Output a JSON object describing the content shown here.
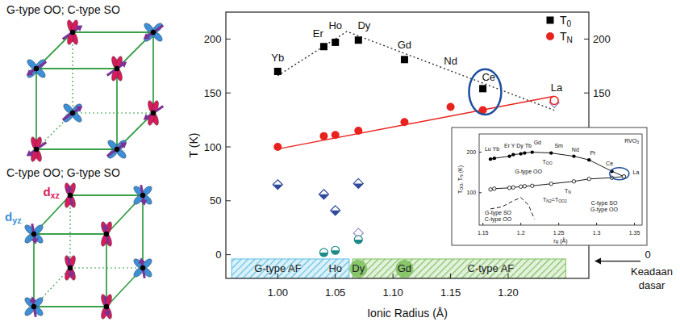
{
  "diagram": {
    "panels": [
      {
        "title": "G-type OO; C-type SO",
        "orbital_order": "G",
        "spin_order": "C"
      },
      {
        "title": "C-type OO; G-type SO",
        "orbital_order": "C",
        "spin_order": "G"
      }
    ],
    "orbitals": [
      {
        "label": [
          "d",
          "xz"
        ],
        "color": "#d81b5a"
      },
      {
        "label": [
          "d",
          "yz"
        ],
        "color": "#3d8fd6"
      }
    ],
    "spin_color": "#7b3294",
    "edge_color": "#3aa04a"
  },
  "chart_data": [
    {
      "type": "scatter",
      "x_label": "Ionic Radius (Å)",
      "y_label": "T (K)",
      "xlim": [
        0.955,
        1.27
      ],
      "xticks": [
        {
          "value": 1.0,
          "label": "1.00"
        },
        1.05,
        {
          "value": 1.1,
          "label": "1.10"
        },
        1.15,
        {
          "value": 1.2,
          "label": "1.20"
        }
      ],
      "ylim": [
        -22,
        225
      ],
      "yticks": [
        0,
        50,
        100,
        150,
        200
      ],
      "y2lim": [
        -22,
        225
      ],
      "y2ticks": [
        150,
        200
      ],
      "grid": false,
      "legend": "top-right",
      "series": [
        {
          "name": [
            "T",
            "0"
          ],
          "color": "#000000",
          "marker": "square",
          "x": [
            1.0,
            1.04,
            1.05,
            1.07,
            1.11,
            1.178
          ],
          "values": [
            170,
            193,
            197,
            199,
            181,
            154
          ]
        },
        {
          "name": [
            "T",
            "N"
          ],
          "color": "#e8231f",
          "marker": "circle",
          "x": [
            1.0,
            1.04,
            1.05,
            1.07,
            1.11,
            1.15,
            1.178
          ],
          "values": [
            100,
            110,
            111,
            115,
            123,
            137,
            134
          ]
        },
        {
          "color": "#2e4a9a",
          "marker": "half-diamond",
          "x": [
            1.0,
            1.04,
            1.05,
            1.07
          ],
          "values": [
            65,
            56,
            41,
            66
          ]
        },
        {
          "color": "#9b8fd0",
          "marker": "open-diamond",
          "x": [
            1.07,
            1.24
          ],
          "values": [
            20,
            141
          ]
        },
        {
          "color": "#1d8a8a",
          "marker": "half-circle",
          "x": [
            1.04,
            1.05,
            1.07
          ],
          "values": [
            2,
            4,
            14
          ]
        },
        {
          "color": "#e8231f",
          "marker": "open-circle",
          "x": [
            1.24
          ],
          "values": [
            143
          ]
        }
      ],
      "trend_lines": [
        {
          "color": "#333333",
          "line_style": "dotted",
          "x": [
            1.0,
            1.06,
            1.24
          ],
          "values": [
            166,
            207,
            134
          ]
        },
        {
          "color": "#e8231f",
          "line_style": "solid",
          "x": [
            1.0,
            1.24
          ],
          "values": [
            98,
            147
          ]
        }
      ],
      "annotations": [
        {
          "text": "Yb",
          "x": 1.0,
          "y": 183
        },
        {
          "text": "Er",
          "x": 1.035,
          "y": 205
        },
        {
          "text": "Ho",
          "x": 1.05,
          "y": 213
        },
        {
          "text": "Dy",
          "x": 1.075,
          "y": 213
        },
        {
          "text": "Gd",
          "x": 1.11,
          "y": 195
        },
        {
          "text": "Nd",
          "x": 1.15,
          "y": 180
        },
        {
          "text": "Ce",
          "x": 1.183,
          "y": 165
        },
        {
          "text": "La",
          "x": 1.242,
          "y": 155
        }
      ],
      "highlight": {
        "x": 1.18,
        "y": [
          130,
          172
        ]
      },
      "regions": [
        {
          "label": "G-type AF",
          "x": [
            0.96,
            1.062
          ],
          "y": [
            -4,
            -22
          ],
          "color": "#5bbde4"
        },
        {
          "label": "C-type AF",
          "x": [
            1.065,
            1.25
          ],
          "y": [
            -4,
            -22
          ],
          "color": "#7cbf5c"
        }
      ],
      "region_elements": [
        {
          "text": "Ho",
          "x": 1.05,
          "circle": false
        },
        {
          "text": "Dy",
          "x": 1.07,
          "circle": true
        },
        {
          "text": "Gd",
          "x": 1.11,
          "circle": true
        }
      ],
      "ground_state": {
        "y": 0,
        "label": "0",
        "text": "Keadaan dasar"
      }
    },
    {
      "type": "line",
      "title": [
        "RVO",
        "3"
      ],
      "x_label": [
        "r",
        "R",
        " (Å)"
      ],
      "y_label": [
        "T",
        "OO",
        ", T",
        "N",
        " (K)"
      ],
      "xlim": [
        1.145,
        1.36
      ],
      "xticks": [
        1.15,
        1.2,
        1.25,
        1.3,
        1.35
      ],
      "ylim": [
        20,
        245
      ],
      "yticks": [
        100,
        200
      ],
      "series": [
        {
          "name": [
            "T",
            "OO"
          ],
          "color": "#000000",
          "marker": "circle",
          "line_style": "solid",
          "label_at": [
            1.235,
            178
          ],
          "x": [
            1.16,
            1.165,
            1.185,
            1.19,
            1.2,
            1.205,
            1.215,
            1.24,
            1.27,
            1.29,
            1.32,
            1.336
          ],
          "values": [
            183,
            185,
            190,
            194,
            196,
            198,
            200,
            198,
            190,
            181,
            153,
            140
          ]
        },
        {
          "name": [
            "T",
            "N"
          ],
          "color": "#000000",
          "marker": "open-circle",
          "line_style": "solid",
          "label_at": [
            1.262,
            106
          ],
          "x": [
            1.16,
            1.165,
            1.185,
            1.19,
            1.2,
            1.205,
            1.215,
            1.24,
            1.27,
            1.29,
            1.32,
            1.336
          ],
          "values": [
            108,
            110,
            112,
            113,
            115,
            116,
            117,
            122,
            128,
            134,
            137,
            140
          ]
        },
        {
          "name": [
            "T",
            "N2",
            "=T",
            "OO2"
          ],
          "color": "#000000",
          "marker": "none",
          "line_style": "dashed",
          "label_at": [
            1.245,
            84
          ],
          "x": [
            1.16,
            1.175,
            1.19,
            1.2,
            1.21,
            1.218
          ],
          "values": [
            60,
            65,
            80,
            88,
            70,
            35
          ]
        }
      ],
      "annotations": [
        {
          "text": "Lu Yb",
          "x": 1.162,
          "y": 208
        },
        {
          "text": "Er Y Dy Tb",
          "x": 1.196,
          "y": 216
        },
        {
          "text": "Gd",
          "x": 1.222,
          "y": 224
        },
        {
          "text": "Sm",
          "x": 1.25,
          "y": 216
        },
        {
          "text": "Nd",
          "x": 1.272,
          "y": 207
        },
        {
          "text": "Pr",
          "x": 1.295,
          "y": 198
        },
        {
          "text": "Ce",
          "x": 1.317,
          "y": 172
        },
        {
          "text": "La",
          "x": 1.352,
          "y": 150
        },
        {
          "text": "G-type OO",
          "x": 1.21,
          "y": 152
        },
        {
          "text": "G-type SO",
          "x": 1.17,
          "y": 50
        },
        {
          "text": "C-type OO",
          "x": 1.17,
          "y": 34
        },
        {
          "text": "C-type SO",
          "x": 1.31,
          "y": 74
        },
        {
          "text": "G-type OO",
          "x": 1.31,
          "y": 58
        }
      ],
      "highlight": {
        "x": 1.33,
        "y": [
          132,
          162
        ]
      }
    }
  ]
}
